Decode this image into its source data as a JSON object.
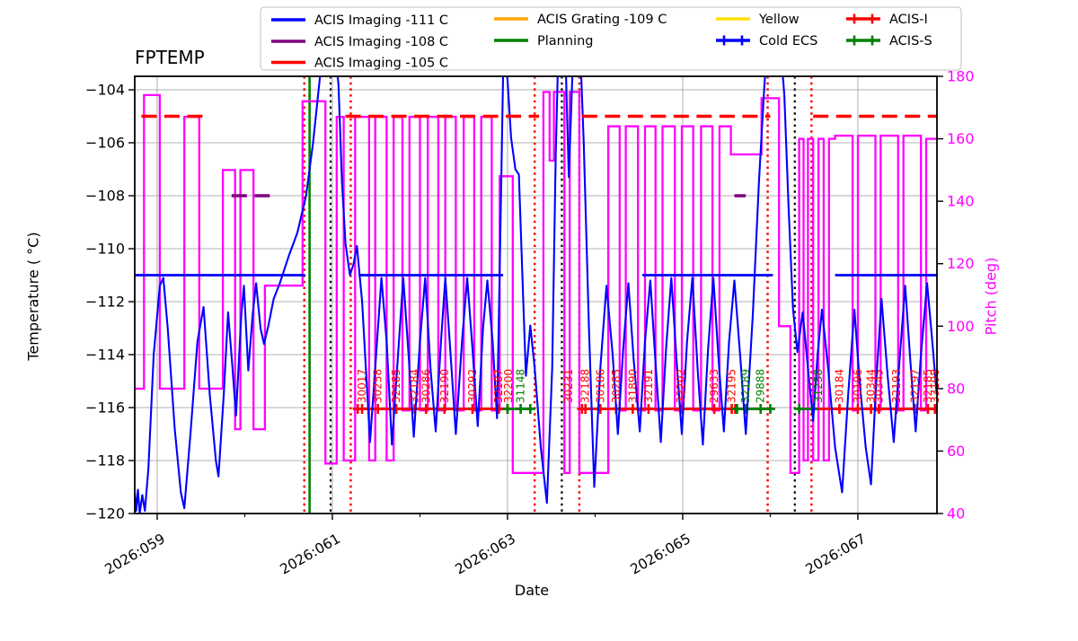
{
  "colors": {
    "blue": "#0000ff",
    "purple": "#800080",
    "red": "#ff0000",
    "orange": "#ffa500",
    "green": "#008000",
    "yellow": "#ffdf00",
    "magenta": "#ff00ff",
    "grid": "#b0b0b0",
    "black": "#000000",
    "legend_border": "#cccccc"
  },
  "legend": {
    "entries": [
      {
        "label": "ACIS Imaging -111 C",
        "color": "#0000ff",
        "marker": false
      },
      {
        "label": "ACIS Imaging -108 C",
        "color": "#800080",
        "marker": false
      },
      {
        "label": "ACIS Imaging -105 C",
        "color": "#ff0000",
        "marker": false
      },
      {
        "label": "ACIS Grating -109 C",
        "color": "#ffa500",
        "marker": false
      },
      {
        "label": "Planning",
        "color": "#008000",
        "marker": false
      },
      {
        "label": "Yellow",
        "color": "#ffdf00",
        "marker": false
      },
      {
        "label": "Cold ECS",
        "color": "#0000ff",
        "marker": true
      },
      {
        "label": "ACIS-I",
        "color": "#ff0000",
        "marker": true
      },
      {
        "label": "ACIS-S",
        "color": "#008000",
        "marker": true
      }
    ],
    "columns": [
      [
        0,
        1,
        2
      ],
      [
        3,
        4
      ],
      [
        5,
        6
      ],
      [
        7,
        8
      ]
    ]
  },
  "chart_data": {
    "type": "line",
    "title": "FPTEMP",
    "xlabel": "Date",
    "ylabel_left": "Temperature ( °C)",
    "ylabel_right": "Pitch (deg)",
    "xlim_days": [
      58.744,
      67.903
    ],
    "ylim_temp": [
      -120,
      -103.49
    ],
    "ylim_pitch": [
      40,
      180
    ],
    "x_ticks": [
      {
        "day": 59,
        "label": "2026:059"
      },
      {
        "day": 61,
        "label": "2026:061"
      },
      {
        "day": 63,
        "label": "2026:063"
      },
      {
        "day": 65,
        "label": "2026:065"
      },
      {
        "day": 67,
        "label": "2026:067"
      }
    ],
    "x_minor_ticks": [
      60,
      62,
      64,
      66
    ],
    "temp_ticks": [
      -104,
      -106,
      -108,
      -110,
      -112,
      -114,
      -116,
      -118,
      -120
    ],
    "pitch_ticks": [
      40,
      60,
      80,
      100,
      120,
      140,
      160,
      180
    ],
    "fptemp_series": {
      "name": "FPTEMP",
      "color": "#0000ff",
      "points": [
        [
          58.744,
          -119.2
        ],
        [
          58.76,
          -119.9
        ],
        [
          58.78,
          -119.1
        ],
        [
          58.8,
          -120.0
        ],
        [
          58.83,
          -119.3
        ],
        [
          58.86,
          -119.9
        ],
        [
          58.9,
          -118.3
        ],
        [
          58.96,
          -114.0
        ],
        [
          59.03,
          -111.4
        ],
        [
          59.07,
          -111.1
        ],
        [
          59.12,
          -113.0
        ],
        [
          59.2,
          -116.8
        ],
        [
          59.27,
          -119.2
        ],
        [
          59.31,
          -119.8
        ],
        [
          59.38,
          -117.0
        ],
        [
          59.46,
          -113.5
        ],
        [
          59.53,
          -112.2
        ],
        [
          59.6,
          -115.5
        ],
        [
          59.67,
          -118.0
        ],
        [
          59.7,
          -118.6
        ],
        [
          59.76,
          -115.5
        ],
        [
          59.81,
          -112.4
        ],
        [
          59.86,
          -114.5
        ],
        [
          59.9,
          -116.3
        ],
        [
          59.96,
          -112.5
        ],
        [
          59.99,
          -111.4
        ],
        [
          60.04,
          -114.6
        ],
        [
          60.09,
          -112.5
        ],
        [
          60.13,
          -111.3
        ],
        [
          60.18,
          -113.0
        ],
        [
          60.22,
          -113.6
        ],
        [
          60.27,
          -112.9
        ],
        [
          60.33,
          -111.9
        ],
        [
          60.4,
          -111.3
        ],
        [
          60.5,
          -110.3
        ],
        [
          60.6,
          -109.4
        ],
        [
          60.7,
          -108.0
        ],
        [
          60.78,
          -106.0
        ],
        [
          60.85,
          -103.8
        ],
        [
          60.89,
          -102.5
        ],
        [
          61.03,
          -102.5
        ],
        [
          61.07,
          -103.8
        ],
        [
          61.11,
          -107.5
        ],
        [
          61.15,
          -109.8
        ],
        [
          61.2,
          -111.0
        ],
        [
          61.24,
          -110.6
        ],
        [
          61.28,
          -109.9
        ],
        [
          61.34,
          -112.0
        ],
        [
          61.43,
          -117.3
        ],
        [
          61.5,
          -114.0
        ],
        [
          61.56,
          -111.1
        ],
        [
          61.62,
          -113.5
        ],
        [
          61.68,
          -117.4
        ],
        [
          61.75,
          -114.0
        ],
        [
          61.81,
          -111.1
        ],
        [
          61.87,
          -114.0
        ],
        [
          61.93,
          -117.1
        ],
        [
          62.0,
          -113.5
        ],
        [
          62.06,
          -111.1
        ],
        [
          62.12,
          -114.5
        ],
        [
          62.18,
          -116.9
        ],
        [
          62.24,
          -113.5
        ],
        [
          62.29,
          -111.1
        ],
        [
          62.35,
          -114.0
        ],
        [
          62.41,
          -117.0
        ],
        [
          62.48,
          -113.5
        ],
        [
          62.54,
          -111.1
        ],
        [
          62.6,
          -113.8
        ],
        [
          62.66,
          -116.7
        ],
        [
          62.72,
          -113.0
        ],
        [
          62.77,
          -111.2
        ],
        [
          62.83,
          -113.5
        ],
        [
          62.88,
          -116.4
        ],
        [
          62.92,
          -109.0
        ],
        [
          62.95,
          -103.3
        ],
        [
          62.99,
          -103.1
        ],
        [
          63.04,
          -105.8
        ],
        [
          63.09,
          -107.0
        ],
        [
          63.13,
          -107.2
        ],
        [
          63.17,
          -111.0
        ],
        [
          63.21,
          -114.8
        ],
        [
          63.26,
          -112.9
        ],
        [
          63.31,
          -114.5
        ],
        [
          63.38,
          -117.5
        ],
        [
          63.45,
          -119.6
        ],
        [
          63.51,
          -114.5
        ],
        [
          63.55,
          -106.5
        ],
        [
          63.58,
          -102.5
        ],
        [
          63.66,
          -102.5
        ],
        [
          63.7,
          -107.3
        ],
        [
          63.74,
          -103.5
        ],
        [
          63.77,
          -102.5
        ],
        [
          63.83,
          -102.5
        ],
        [
          63.87,
          -106.0
        ],
        [
          63.93,
          -113.0
        ],
        [
          63.99,
          -119.0
        ],
        [
          64.06,
          -114.5
        ],
        [
          64.13,
          -111.4
        ],
        [
          64.2,
          -114.0
        ],
        [
          64.26,
          -117.0
        ],
        [
          64.32,
          -113.8
        ],
        [
          64.38,
          -111.3
        ],
        [
          64.44,
          -114.2
        ],
        [
          64.51,
          -116.9
        ],
        [
          64.57,
          -113.5
        ],
        [
          64.63,
          -111.2
        ],
        [
          64.69,
          -114.3
        ],
        [
          64.75,
          -117.3
        ],
        [
          64.81,
          -113.8
        ],
        [
          64.87,
          -111.1
        ],
        [
          64.93,
          -114.2
        ],
        [
          64.99,
          -117.0
        ],
        [
          65.05,
          -113.5
        ],
        [
          65.11,
          -111.1
        ],
        [
          65.17,
          -114.5
        ],
        [
          65.23,
          -117.4
        ],
        [
          65.29,
          -113.8
        ],
        [
          65.35,
          -111.1
        ],
        [
          65.41,
          -114.2
        ],
        [
          65.47,
          -116.9
        ],
        [
          65.53,
          -113.5
        ],
        [
          65.59,
          -111.2
        ],
        [
          65.66,
          -114.2
        ],
        [
          65.72,
          -117.0
        ],
        [
          65.8,
          -112.5
        ],
        [
          65.87,
          -107.5
        ],
        [
          65.93,
          -104.0
        ],
        [
          65.96,
          -102.5
        ],
        [
          66.12,
          -102.5
        ],
        [
          66.16,
          -104.2
        ],
        [
          66.21,
          -108.5
        ],
        [
          66.26,
          -112.3
        ],
        [
          66.31,
          -113.9
        ],
        [
          66.37,
          -112.4
        ],
        [
          66.43,
          -114.5
        ],
        [
          66.49,
          -116.5
        ],
        [
          66.54,
          -114.0
        ],
        [
          66.59,
          -112.3
        ],
        [
          66.66,
          -114.5
        ],
        [
          66.74,
          -117.5
        ],
        [
          66.82,
          -119.2
        ],
        [
          66.89,
          -115.5
        ],
        [
          66.96,
          -112.3
        ],
        [
          67.02,
          -115.0
        ],
        [
          67.09,
          -117.5
        ],
        [
          67.15,
          -118.9
        ],
        [
          67.21,
          -115.0
        ],
        [
          67.27,
          -111.9
        ],
        [
          67.34,
          -114.8
        ],
        [
          67.41,
          -117.3
        ],
        [
          67.48,
          -114.0
        ],
        [
          67.54,
          -111.4
        ],
        [
          67.6,
          -114.3
        ],
        [
          67.66,
          -116.9
        ],
        [
          67.72,
          -114.0
        ],
        [
          67.79,
          -111.3
        ],
        [
          67.85,
          -113.5
        ],
        [
          67.9,
          -115.5
        ]
      ]
    },
    "pitch_series": {
      "name": "Pitch",
      "color": "#ff00ff",
      "steps": [
        [
          58.744,
          80
        ],
        [
          58.85,
          174
        ],
        [
          59.03,
          80
        ],
        [
          59.31,
          167
        ],
        [
          59.48,
          80
        ],
        [
          59.75,
          150
        ],
        [
          59.89,
          67
        ],
        [
          59.95,
          150
        ],
        [
          60.1,
          67
        ],
        [
          60.23,
          113
        ],
        [
          60.66,
          172
        ],
        [
          60.92,
          56
        ],
        [
          61.05,
          167
        ],
        [
          61.13,
          57
        ],
        [
          61.26,
          167
        ],
        [
          61.42,
          57
        ],
        [
          61.49,
          167
        ],
        [
          61.62,
          57
        ],
        [
          61.7,
          167
        ],
        [
          61.8,
          73
        ],
        [
          61.88,
          167
        ],
        [
          62.0,
          73
        ],
        [
          62.09,
          167
        ],
        [
          62.21,
          73
        ],
        [
          62.29,
          167
        ],
        [
          62.41,
          73
        ],
        [
          62.5,
          167
        ],
        [
          62.62,
          73
        ],
        [
          62.7,
          167
        ],
        [
          62.82,
          73
        ],
        [
          62.91,
          148
        ],
        [
          63.06,
          53
        ],
        [
          63.41,
          175
        ],
        [
          63.48,
          153
        ],
        [
          63.53,
          175
        ],
        [
          63.65,
          53
        ],
        [
          63.71,
          175
        ],
        [
          63.82,
          53
        ],
        [
          64.15,
          164
        ],
        [
          64.28,
          73
        ],
        [
          64.35,
          164
        ],
        [
          64.49,
          73
        ],
        [
          64.57,
          164
        ],
        [
          64.69,
          73
        ],
        [
          64.77,
          164
        ],
        [
          64.91,
          73
        ],
        [
          64.99,
          164
        ],
        [
          65.12,
          73
        ],
        [
          65.21,
          164
        ],
        [
          65.34,
          73
        ],
        [
          65.42,
          164
        ],
        [
          65.55,
          155
        ],
        [
          65.9,
          173
        ],
        [
          66.1,
          100
        ],
        [
          66.23,
          53
        ],
        [
          66.33,
          160
        ],
        [
          66.38,
          57
        ],
        [
          66.43,
          160
        ],
        [
          66.49,
          57
        ],
        [
          66.55,
          160
        ],
        [
          66.61,
          57
        ],
        [
          66.67,
          160
        ],
        [
          66.74,
          161
        ],
        [
          66.94,
          73
        ],
        [
          67.0,
          161
        ],
        [
          67.2,
          73
        ],
        [
          67.26,
          161
        ],
        [
          67.46,
          73
        ],
        [
          67.52,
          161
        ],
        [
          67.72,
          73
        ],
        [
          67.78,
          160
        ],
        [
          67.9,
          160
        ]
      ]
    },
    "limit_lines": [
      {
        "name": "ACIS Imaging -111 C",
        "color": "#0000ff",
        "y": -111,
        "style": "solid",
        "width": 2.8,
        "segments": [
          [
            58.744,
            60.69
          ],
          [
            61.3,
            62.95
          ],
          [
            64.54,
            66.03
          ],
          [
            66.74,
            67.9
          ]
        ]
      },
      {
        "name": "ACIS Imaging -108 C",
        "color": "#800080",
        "y": -108,
        "style": "dashed",
        "width": 3.5,
        "segments": [
          [
            59.85,
            60.33
          ],
          [
            65.59,
            65.72
          ]
        ]
      },
      {
        "name": "ACIS Imaging -105 C",
        "color": "#ff0000",
        "y": -105,
        "style": "dashed",
        "width": 3.5,
        "segments": [
          [
            58.82,
            59.54
          ],
          [
            61.15,
            63.36
          ],
          [
            63.85,
            66.0
          ],
          [
            66.49,
            67.9
          ]
        ]
      }
    ],
    "instrument_lines": [
      {
        "name": "ACIS-I",
        "color": "#ff0000",
        "y": -116.05,
        "width": 2.8,
        "segments": [
          [
            61.29,
            63.0
          ],
          [
            63.85,
            65.6
          ],
          [
            66.49,
            67.9
          ]
        ]
      },
      {
        "name": "ACIS-S",
        "color": "#008000",
        "y": -116.05,
        "width": 2.8,
        "segments": [
          [
            63.0,
            63.26
          ],
          [
            65.62,
            66.0
          ],
          [
            66.33,
            66.49
          ]
        ]
      }
    ],
    "vlines": {
      "red_dotted": [
        60.68,
        61.21,
        63.31,
        63.82,
        65.97,
        66.47
      ],
      "black_dotted": [
        60.98,
        63.62,
        66.28
      ],
      "green_solid": [
        60.74
      ]
    },
    "obsid_labels": [
      {
        "day": 61.34,
        "text": "30017",
        "color": "red"
      },
      {
        "day": 61.52,
        "text": "30258",
        "color": "red"
      },
      {
        "day": 61.73,
        "text": "32185",
        "color": "red"
      },
      {
        "day": 61.94,
        "text": "32184",
        "color": "red"
      },
      {
        "day": 62.07,
        "text": "30286",
        "color": "red"
      },
      {
        "day": 62.28,
        "text": "32190",
        "color": "red"
      },
      {
        "day": 62.6,
        "text": "30292",
        "color": "red"
      },
      {
        "day": 62.9,
        "text": "32187",
        "color": "red"
      },
      {
        "day": 63.01,
        "text": "32200",
        "color": "red"
      },
      {
        "day": 63.15,
        "text": "31148",
        "color": "green"
      },
      {
        "day": 63.7,
        "text": "30231",
        "color": "red"
      },
      {
        "day": 63.89,
        "text": "32188",
        "color": "red"
      },
      {
        "day": 64.06,
        "text": "30186",
        "color": "red"
      },
      {
        "day": 64.24,
        "text": "30285",
        "color": "red"
      },
      {
        "day": 64.43,
        "text": "31890",
        "color": "red"
      },
      {
        "day": 64.61,
        "text": "32191",
        "color": "red"
      },
      {
        "day": 64.98,
        "text": "32202",
        "color": "red"
      },
      {
        "day": 65.36,
        "text": "29633",
        "color": "red"
      },
      {
        "day": 65.56,
        "text": "32195",
        "color": "red"
      },
      {
        "day": 65.72,
        "text": "32189",
        "color": "green"
      },
      {
        "day": 65.89,
        "text": "29888",
        "color": "green"
      },
      {
        "day": 66.55,
        "text": "31258",
        "color": "green"
      },
      {
        "day": 66.79,
        "text": "30184",
        "color": "red"
      },
      {
        "day": 67.0,
        "text": "30196",
        "color": "red"
      },
      {
        "day": 67.15,
        "text": "30344",
        "color": "red"
      },
      {
        "day": 67.24,
        "text": "30345",
        "color": "red"
      },
      {
        "day": 67.44,
        "text": "32193",
        "color": "red"
      },
      {
        "day": 67.65,
        "text": "32197",
        "color": "red"
      },
      {
        "day": 67.8,
        "text": "32185",
        "color": "red"
      },
      {
        "day": 67.88,
        "text": "33198",
        "color": "red"
      }
    ]
  }
}
